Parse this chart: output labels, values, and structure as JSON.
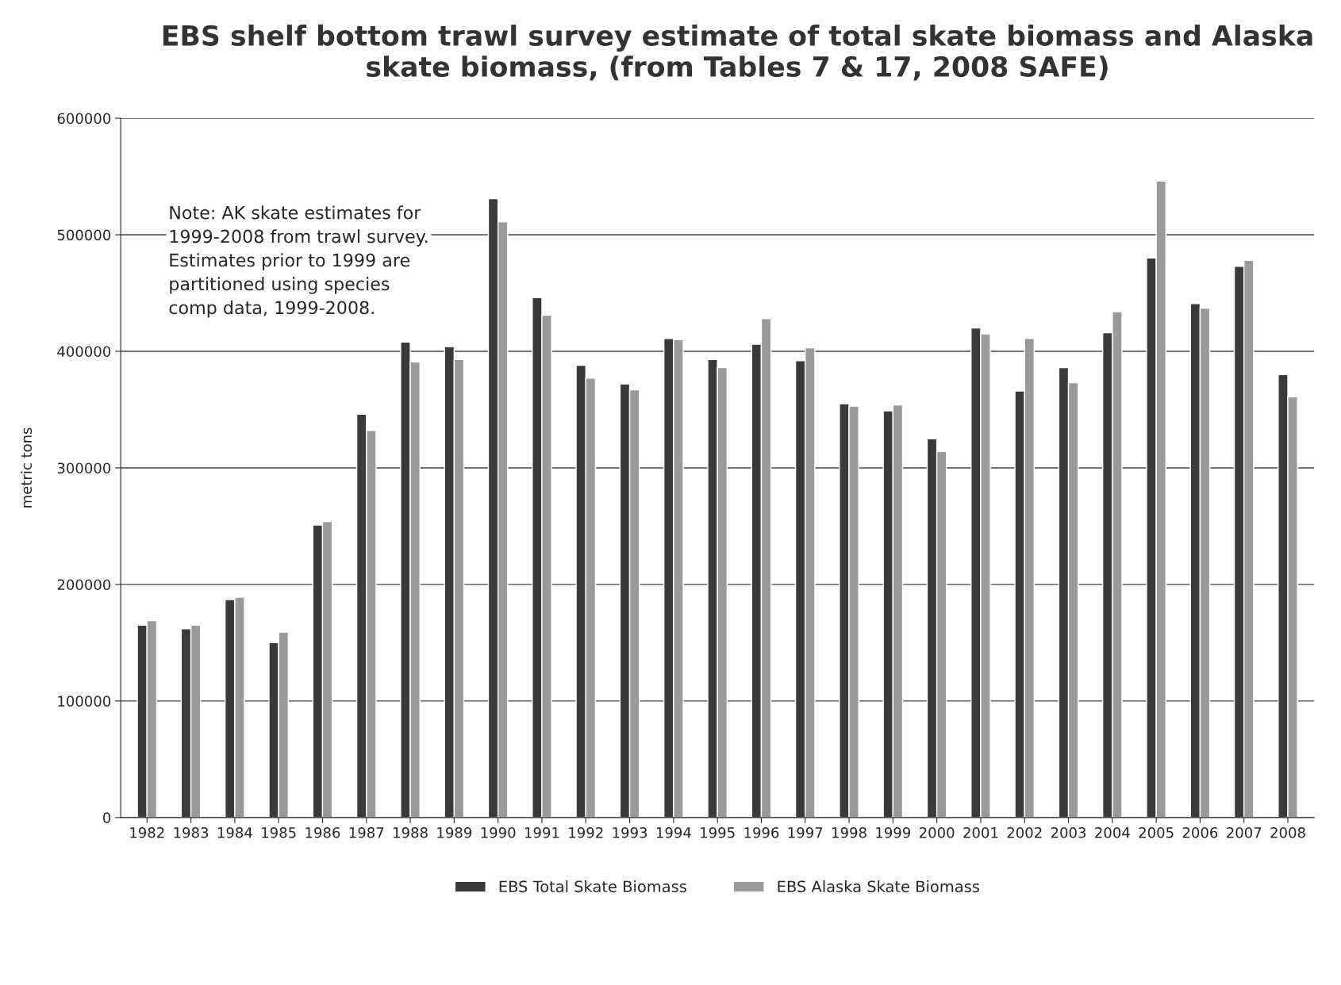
{
  "chart_data": {
    "type": "bar",
    "title": "EBS shelf bottom trawl survey estimate of total skate biomass and Alaska skate biomass, (from Tables 7 & 17, 2008 SAFE)",
    "ylabel": "metric tons",
    "categories": [
      "1982",
      "1983",
      "1984",
      "1985",
      "1986",
      "1987",
      "1988",
      "1989",
      "1990",
      "1991",
      "1992",
      "1993",
      "1994",
      "1995",
      "1996",
      "1997",
      "1998",
      "1999",
      "2000",
      "2001",
      "2002",
      "2003",
      "2004",
      "2005",
      "2006",
      "2007",
      "2008"
    ],
    "series": [
      {
        "name": "EBS Total Skate Biomass",
        "color": "#3a3a3a",
        "values": [
          165000,
          162000,
          187000,
          150000,
          251000,
          346000,
          408000,
          404000,
          531000,
          446000,
          388000,
          372000,
          411000,
          393000,
          406000,
          392000,
          355000,
          349000,
          325000,
          420000,
          366000,
          386000,
          416000,
          480000,
          441000,
          473000,
          380000
        ]
      },
      {
        "name": "EBS Alaska Skate Biomass",
        "color": "#9a9a9a",
        "values": [
          169000,
          165000,
          189000,
          159000,
          254000,
          332000,
          391000,
          393000,
          511000,
          431000,
          377000,
          367000,
          410000,
          386000,
          428000,
          403000,
          353000,
          354000,
          314000,
          415000,
          411000,
          373000,
          434000,
          546000,
          437000,
          478000,
          361000
        ]
      }
    ],
    "ylim": [
      0,
      600000
    ],
    "yticks": [
      0,
      100000,
      200000,
      300000,
      400000,
      500000,
      600000
    ],
    "grid": "y",
    "legend": "bottom",
    "annotations": [
      "Note: AK skate estimates for\n1999-2008 from trawl survey.\nEstimates prior to 1999 are\npartitioned using species\ncomp data, 1999-2008."
    ]
  }
}
